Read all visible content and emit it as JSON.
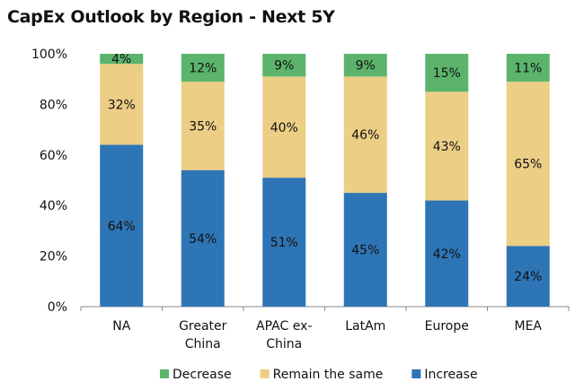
{
  "chart_data": {
    "type": "bar",
    "stacked": true,
    "title": "CapEx Outlook by Region - Next 5Y",
    "xlabel": "",
    "ylabel": "",
    "ylim": [
      0,
      100
    ],
    "yticks": [
      "0%",
      "20%",
      "40%",
      "60%",
      "80%",
      "100%"
    ],
    "grid": false,
    "legend_position": "bottom",
    "categories": [
      [
        "NA"
      ],
      [
        "Greater",
        "China"
      ],
      [
        "APAC ex-",
        "China"
      ],
      [
        "LatAm"
      ],
      [
        "Europe"
      ],
      [
        "MEA"
      ]
    ],
    "series": [
      {
        "name": "Increase",
        "color": "#2e75b6",
        "values": [
          64,
          54,
          51,
          45,
          42,
          24
        ]
      },
      {
        "name": "Remain the same",
        "color": "#ecce85",
        "values": [
          32,
          35,
          40,
          46,
          43,
          65
        ]
      },
      {
        "name": "Decrease",
        "color": "#5bb36c",
        "values": [
          4,
          12,
          9,
          9,
          15,
          11
        ]
      }
    ],
    "legend_order": [
      "Decrease",
      "Remain the same",
      "Increase"
    ]
  }
}
